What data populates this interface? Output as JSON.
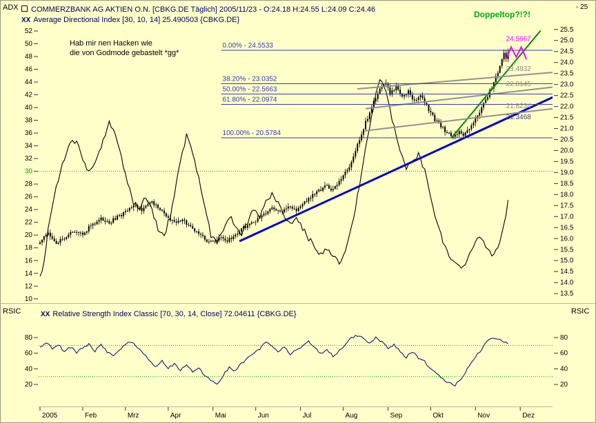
{
  "window": {
    "left_axis_title": "ADX",
    "top_right_label": "- 25",
    "title_line": "COMMERZBANK AG AKTIEN O.N. [CBKG.DE Täglich] 2005/11/23 - O:24.18 H:24.55 L:24.09 C:24.46",
    "indicator_icon": "XX",
    "indicator_line": "Average Directional Index [30, 10, 14] 25.490503 {CBKG.DE}",
    "rsi_line": "Relative Strength Index Classic [70, 30, 14, Close] 72.04611 {CBKG.DE}",
    "rsi_axis_title": "RSIC"
  },
  "annotations": {
    "note_line1": "Hab mir nen Hacken wie",
    "note_line2": "die von Godmode gebastelt *gg*",
    "doppeltop": "Doppeltop?!?!"
  },
  "colors": {
    "background": "#ffffca",
    "fib": "#3a3aae",
    "ref_line": "#00a814",
    "rsi_line": "#000066",
    "header_text": "#000066"
  },
  "chart_data": [
    {
      "type": "candlestick",
      "title": "COMMERZBANK AG AKTIEN O.N. [CBKG.DE Täglich] 2005/11/23",
      "symbol": "CBKG.DE",
      "date": "2005/11/23",
      "ohlc": {
        "open": 24.18,
        "high": 24.55,
        "low": 24.09,
        "close": 24.46
      },
      "indicator": "Average Directional Index [30, 10, 14]",
      "adx_value": 25.490503,
      "left_axis_range": [
        10,
        52
      ],
      "right_axis_range": [
        13.5,
        25.5
      ],
      "left_axis_ticks": [
        52,
        50,
        48,
        46,
        44,
        42,
        40,
        38,
        36,
        34,
        32,
        30,
        28,
        26,
        24,
        22,
        20,
        18,
        16,
        14,
        12,
        10
      ],
      "right_axis_ticks": [
        25.5,
        25,
        24.5,
        24,
        23.5,
        23,
        22.5,
        22,
        21.5,
        21,
        20.5,
        20,
        19.5,
        19,
        18.5,
        18,
        17.5,
        17,
        16.5,
        16,
        15.5,
        15,
        14.5,
        14,
        13.5
      ],
      "adx_ref_line": 30,
      "months": [
        {
          "label": "2005",
          "day": 0
        },
        {
          "label": "Feb",
          "day": 21
        },
        {
          "label": "Mrz",
          "day": 42
        },
        {
          "label": "Apr",
          "day": 63
        },
        {
          "label": "Mai",
          "day": 85
        },
        {
          "label": "Jun",
          "day": 106
        },
        {
          "label": "Jul",
          "day": 128
        },
        {
          "label": "Aug",
          "day": 149
        },
        {
          "label": "Sep",
          "day": 171
        },
        {
          "label": "Okt",
          "day": 192
        },
        {
          "label": "Nov",
          "day": 214
        },
        {
          "label": "Dez",
          "day": 236
        }
      ],
      "last_bar_day": 230,
      "close_path": [
        [
          0,
          15.9
        ],
        [
          4,
          16.2
        ],
        [
          8,
          15.8
        ],
        [
          12,
          16.0
        ],
        [
          16,
          16.3
        ],
        [
          21,
          16.2
        ],
        [
          25,
          16.6
        ],
        [
          30,
          16.9
        ],
        [
          34,
          16.7
        ],
        [
          38,
          17.0
        ],
        [
          42,
          17.2
        ],
        [
          46,
          17.5
        ],
        [
          50,
          17.3
        ],
        [
          54,
          17.7
        ],
        [
          58,
          17.4
        ],
        [
          62,
          17.0
        ],
        [
          66,
          16.7
        ],
        [
          70,
          16.9
        ],
        [
          74,
          16.5
        ],
        [
          78,
          16.2
        ],
        [
          82,
          15.9
        ],
        [
          85,
          15.8
        ],
        [
          88,
          16.1
        ],
        [
          92,
          15.9
        ],
        [
          96,
          16.2
        ],
        [
          100,
          16.5
        ],
        [
          104,
          16.7
        ],
        [
          106,
          16.8
        ],
        [
          110,
          17.1
        ],
        [
          114,
          17.4
        ],
        [
          118,
          17.2
        ],
        [
          122,
          17.5
        ],
        [
          126,
          17.3
        ],
        [
          128,
          17.5
        ],
        [
          132,
          17.8
        ],
        [
          136,
          18.1
        ],
        [
          140,
          18.4
        ],
        [
          144,
          18.2
        ],
        [
          147,
          18.6
        ],
        [
          149,
          18.8
        ],
        [
          152,
          19.3
        ],
        [
          155,
          20.0
        ],
        [
          158,
          20.8
        ],
        [
          161,
          21.5
        ],
        [
          164,
          22.2
        ],
        [
          167,
          22.8
        ],
        [
          170,
          23.0
        ],
        [
          172,
          22.6
        ],
        [
          175,
          22.9
        ],
        [
          178,
          22.4
        ],
        [
          181,
          22.7
        ],
        [
          184,
          22.2
        ],
        [
          187,
          22.5
        ],
        [
          190,
          22.0
        ],
        [
          192,
          21.7
        ],
        [
          194,
          21.4
        ],
        [
          197,
          21.1
        ],
        [
          200,
          20.8
        ],
        [
          203,
          20.6
        ],
        [
          206,
          20.9
        ],
        [
          208,
          20.65
        ],
        [
          211,
          21.0
        ],
        [
          214,
          21.4
        ],
        [
          217,
          21.9
        ],
        [
          220,
          22.5
        ],
        [
          223,
          23.1
        ],
        [
          225,
          23.6
        ],
        [
          227,
          24.1
        ],
        [
          228,
          24.5
        ],
        [
          229,
          24.2
        ],
        [
          230,
          24.46
        ]
      ],
      "adx_path": [
        [
          0,
          13.5
        ],
        [
          2,
          16
        ],
        [
          4,
          21
        ],
        [
          7,
          26
        ],
        [
          10,
          30
        ],
        [
          13,
          33
        ],
        [
          16,
          35
        ],
        [
          19,
          34
        ],
        [
          22,
          31
        ],
        [
          25,
          30
        ],
        [
          28,
          32
        ],
        [
          31,
          35
        ],
        [
          34,
          37.5
        ],
        [
          37,
          36
        ],
        [
          40,
          32
        ],
        [
          43,
          28
        ],
        [
          46,
          25
        ],
        [
          49,
          24
        ],
        [
          52,
          26
        ],
        [
          55,
          24
        ],
        [
          58,
          21
        ],
        [
          61,
          20
        ],
        [
          64,
          23
        ],
        [
          67,
          28
        ],
        [
          70,
          33
        ],
        [
          72,
          35.5
        ],
        [
          75,
          33
        ],
        [
          78,
          29
        ],
        [
          81,
          24
        ],
        [
          84,
          20
        ],
        [
          87,
          19
        ],
        [
          90,
          21
        ],
        [
          93,
          23
        ],
        [
          96,
          21.5
        ],
        [
          99,
          20
        ],
        [
          102,
          22
        ],
        [
          105,
          24
        ],
        [
          108,
          23
        ],
        [
          111,
          25
        ],
        [
          114,
          26.5
        ],
        [
          117,
          25
        ],
        [
          120,
          23
        ],
        [
          123,
          21.5
        ],
        [
          126,
          22.5
        ],
        [
          129,
          21
        ],
        [
          132,
          19.5
        ],
        [
          135,
          18
        ],
        [
          138,
          17
        ],
        [
          141,
          18
        ],
        [
          144,
          16.5
        ],
        [
          147,
          15.8
        ],
        [
          150,
          17
        ],
        [
          153,
          21
        ],
        [
          156,
          26
        ],
        [
          159,
          32
        ],
        [
          162,
          37
        ],
        [
          165,
          42
        ],
        [
          167,
          44.3
        ],
        [
          169,
          43.5
        ],
        [
          171,
          41
        ],
        [
          174,
          37
        ],
        [
          177,
          33
        ],
        [
          180,
          30.5
        ],
        [
          183,
          31.5
        ],
        [
          186,
          32.5
        ],
        [
          189,
          30
        ],
        [
          192,
          26
        ],
        [
          195,
          22
        ],
        [
          198,
          19
        ],
        [
          201,
          17
        ],
        [
          204,
          15.5
        ],
        [
          207,
          14.5
        ],
        [
          210,
          16
        ],
        [
          213,
          18.5
        ],
        [
          216,
          20
        ],
        [
          219,
          18.5
        ],
        [
          222,
          17
        ],
        [
          225,
          18
        ],
        [
          227,
          20.5
        ],
        [
          229,
          23
        ],
        [
          230,
          25.49
        ]
      ],
      "fib_start_day": 89,
      "fib_levels": [
        {
          "label": "0.00%",
          "value": 24.5533
        },
        {
          "label": "38.20%",
          "value": 23.0352
        },
        {
          "label": "50.00%",
          "value": 22.5663
        },
        {
          "label": "61.80%",
          "value": 22.0974
        },
        {
          "label": "100.00%",
          "value": 20.5784
        }
      ],
      "trendlines": [
        {
          "name": "trendline-blue-support",
          "color": "#0000cc",
          "width": 3,
          "points": [
            [
              98,
              15.88
            ],
            [
              252,
              22.42
            ]
          ]
        },
        {
          "name": "trendline-green-breakout",
          "color": "#008800",
          "width": 2,
          "points": [
            [
              202,
              20.55
            ],
            [
              246,
              25.45
            ]
          ]
        },
        {
          "name": "trendline-gray-channel-upper",
          "color": "#909090",
          "width": 2,
          "points": [
            [
              156,
              22.8
            ],
            [
              252,
              23.55
            ]
          ]
        },
        {
          "name": "trendline-gray-channel-mid",
          "color": "#909090",
          "width": 2,
          "points": [
            [
              160,
              21.9
            ],
            [
              252,
              22.88
            ]
          ]
        },
        {
          "name": "trendline-gray-channel-lower",
          "color": "#909090",
          "width": 2,
          "points": [
            [
              160,
              20.9
            ],
            [
              252,
              21.9
            ]
          ]
        }
      ],
      "line_value_labels": [
        {
          "text": "24.5667",
          "color": "#ff00ff",
          "day": 229,
          "price": 24.98
        },
        {
          "text": "23.4832",
          "color": "#888888",
          "day": 229,
          "price": 23.62
        },
        {
          "text": "22.8145",
          "color": "#888888",
          "day": 229,
          "price": 22.92
        },
        {
          "text": "21.8234",
          "color": "#888888",
          "day": 229,
          "price": 21.92
        },
        {
          "text": "21.3468",
          "color": "#404080",
          "day": 229,
          "price": 21.42
        }
      ],
      "double_top_marker": {
        "color": "#ff00ff",
        "points": [
          [
            229,
            24.15
          ],
          [
            231.5,
            24.7
          ],
          [
            234,
            24.25
          ],
          [
            236.5,
            24.7
          ],
          [
            239,
            24.15
          ]
        ]
      }
    },
    {
      "type": "line",
      "title": "Relative Strength Index Classic [70, 30, 14, Close]",
      "rsi_value": 72.04611,
      "range": [
        0,
        100
      ],
      "ticks": [
        80,
        60,
        40,
        20
      ],
      "ref_lines": [
        70,
        30
      ],
      "path": [
        [
          0,
          68
        ],
        [
          3,
          73
        ],
        [
          6,
          66
        ],
        [
          9,
          71
        ],
        [
          12,
          62
        ],
        [
          15,
          68
        ],
        [
          18,
          61
        ],
        [
          21,
          67
        ],
        [
          24,
          72
        ],
        [
          27,
          63
        ],
        [
          30,
          70
        ],
        [
          33,
          62
        ],
        [
          36,
          56
        ],
        [
          39,
          65
        ],
        [
          42,
          71
        ],
        [
          45,
          75
        ],
        [
          48,
          68
        ],
        [
          51,
          59
        ],
        [
          54,
          49
        ],
        [
          57,
          43
        ],
        [
          60,
          50
        ],
        [
          63,
          41
        ],
        [
          66,
          46
        ],
        [
          69,
          38
        ],
        [
          72,
          46
        ],
        [
          75,
          36
        ],
        [
          78,
          42
        ],
        [
          81,
          31
        ],
        [
          84,
          26
        ],
        [
          87,
          19
        ],
        [
          90,
          32
        ],
        [
          93,
          42
        ],
        [
          96,
          37
        ],
        [
          99,
          47
        ],
        [
          102,
          53
        ],
        [
          105,
          59
        ],
        [
          108,
          66
        ],
        [
          111,
          74
        ],
        [
          114,
          70
        ],
        [
          117,
          62
        ],
        [
          120,
          68
        ],
        [
          123,
          58
        ],
        [
          126,
          64
        ],
        [
          129,
          70
        ],
        [
          132,
          75
        ],
        [
          135,
          67
        ],
        [
          138,
          59
        ],
        [
          141,
          65
        ],
        [
          144,
          56
        ],
        [
          147,
          63
        ],
        [
          150,
          71
        ],
        [
          153,
          79
        ],
        [
          156,
          83
        ],
        [
          159,
          79
        ],
        [
          162,
          73
        ],
        [
          165,
          80
        ],
        [
          168,
          74
        ],
        [
          171,
          66
        ],
        [
          174,
          71
        ],
        [
          177,
          62
        ],
        [
          180,
          55
        ],
        [
          183,
          62
        ],
        [
          186,
          54
        ],
        [
          189,
          49
        ],
        [
          192,
          41
        ],
        [
          195,
          34
        ],
        [
          198,
          27
        ],
        [
          201,
          22
        ],
        [
          204,
          19
        ],
        [
          207,
          28
        ],
        [
          210,
          40
        ],
        [
          213,
          52
        ],
        [
          216,
          62
        ],
        [
          219,
          72
        ],
        [
          222,
          80
        ],
        [
          225,
          77
        ],
        [
          228,
          75
        ],
        [
          230,
          72
        ]
      ]
    }
  ]
}
